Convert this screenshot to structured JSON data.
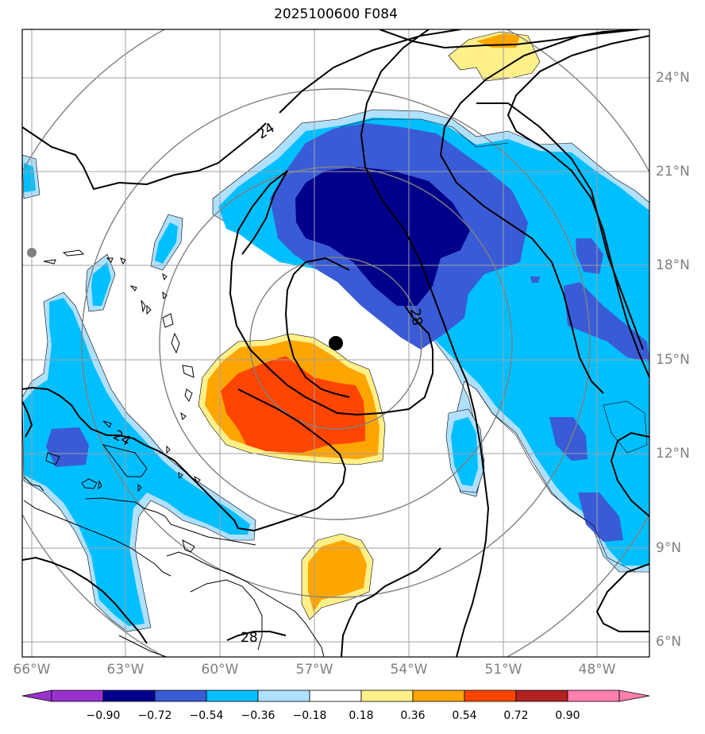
{
  "title": "2025100600 F084",
  "map": {
    "lon_labels": [
      "66°W",
      "63°W",
      "60°W",
      "57°W",
      "54°W",
      "51°W",
      "48°W"
    ],
    "lat_labels": [
      "24°N",
      "21°N",
      "18°N",
      "15°N",
      "12°N",
      "9°N",
      "6°N"
    ],
    "contour_labels": [
      "24",
      "28",
      "24",
      "28"
    ],
    "storm_center": {
      "lon": -56.3,
      "lat": 15.5
    }
  },
  "colorbar": {
    "ticks": [
      "−0.90",
      "−0.72",
      "−0.54",
      "−0.36",
      "−0.18",
      "0.18",
      "0.36",
      "0.54",
      "0.72",
      "0.90"
    ],
    "colors": [
      "#9932cc",
      "#00008b",
      "#3a5bd6",
      "#00bfff",
      "#b0e0ff",
      "#ffffff",
      "#fff08a",
      "#ffa500",
      "#ff4500",
      "#b22222",
      "#ff7fae"
    ]
  }
}
